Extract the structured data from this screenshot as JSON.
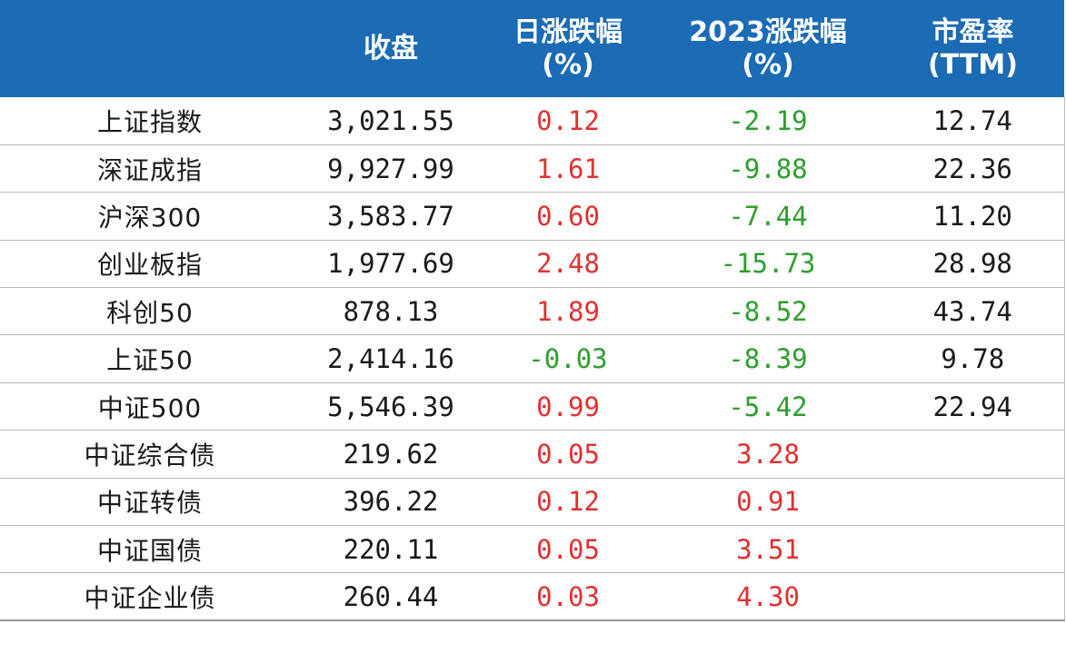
{
  "colors": {
    "header_bg": "#1b6bb5",
    "header_text": "#ffffff",
    "positive": "#e03131",
    "negative": "#2e9e2e",
    "text": "#1a1a1a"
  },
  "header": {
    "col0": "",
    "col1": "收盘",
    "col2_line1": "日涨跌幅",
    "col2_line2": "(%)",
    "col3_line1": "2023涨跌幅",
    "col3_line2": "(%)",
    "col4_line1": "市盈率",
    "col4_line2": "(TTM)"
  },
  "rows": [
    {
      "name": "上证指数",
      "close": "3,021.55",
      "daily": "0.12",
      "daily_sign": "pos",
      "ytd": "-2.19",
      "ytd_sign": "neg",
      "pe": "12.74"
    },
    {
      "name": "深证成指",
      "close": "9,927.99",
      "daily": "1.61",
      "daily_sign": "pos",
      "ytd": "-9.88",
      "ytd_sign": "neg",
      "pe": "22.36"
    },
    {
      "name": "沪深300",
      "close": "3,583.77",
      "daily": "0.60",
      "daily_sign": "pos",
      "ytd": "-7.44",
      "ytd_sign": "neg",
      "pe": "11.20"
    },
    {
      "name": "创业板指",
      "close": "1,977.69",
      "daily": "2.48",
      "daily_sign": "pos",
      "ytd": "-15.73",
      "ytd_sign": "neg",
      "pe": "28.98"
    },
    {
      "name": "科创50",
      "close": "878.13",
      "daily": "1.89",
      "daily_sign": "pos",
      "ytd": "-8.52",
      "ytd_sign": "neg",
      "pe": "43.74"
    },
    {
      "name": "上证50",
      "close": "2,414.16",
      "daily": "-0.03",
      "daily_sign": "neg",
      "ytd": "-8.39",
      "ytd_sign": "neg",
      "pe": "9.78"
    },
    {
      "name": "中证500",
      "close": "5,546.39",
      "daily": "0.99",
      "daily_sign": "pos",
      "ytd": "-5.42",
      "ytd_sign": "neg",
      "pe": "22.94"
    },
    {
      "name": "中证综合债",
      "close": "219.62",
      "daily": "0.05",
      "daily_sign": "pos",
      "ytd": "3.28",
      "ytd_sign": "pos",
      "pe": ""
    },
    {
      "name": "中证转债",
      "close": "396.22",
      "daily": "0.12",
      "daily_sign": "pos",
      "ytd": "0.91",
      "ytd_sign": "pos",
      "pe": ""
    },
    {
      "name": "中证国债",
      "close": "220.11",
      "daily": "0.05",
      "daily_sign": "pos",
      "ytd": "3.51",
      "ytd_sign": "pos",
      "pe": ""
    },
    {
      "name": "中证企业债",
      "close": "260.44",
      "daily": "0.03",
      "daily_sign": "pos",
      "ytd": "4.30",
      "ytd_sign": "pos",
      "pe": ""
    }
  ]
}
